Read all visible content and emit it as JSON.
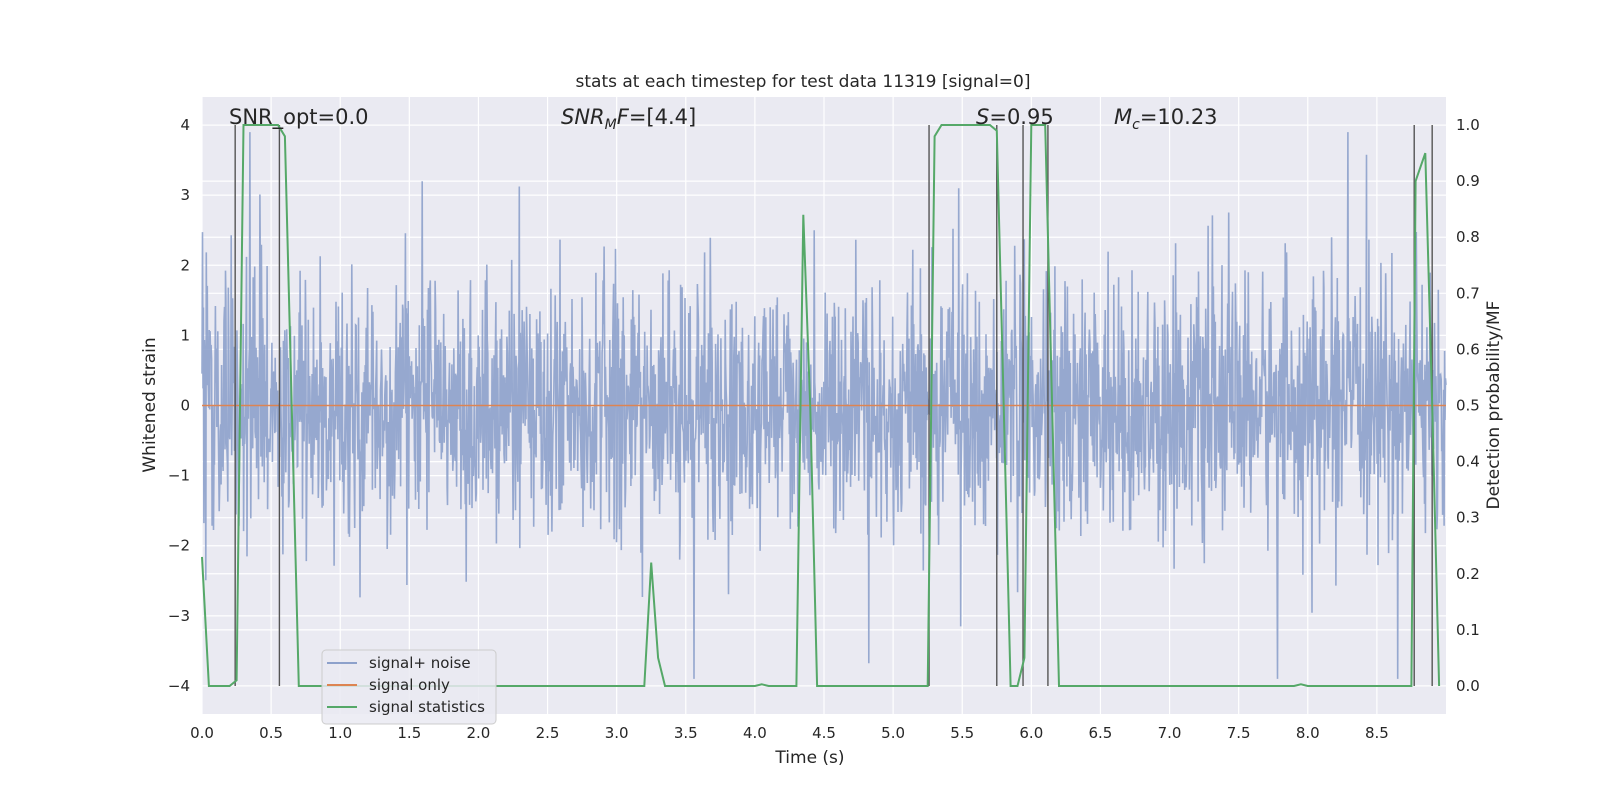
{
  "chart_data": {
    "type": "line",
    "title": "stats at each timestep for test data 11319 [signal=0]",
    "xlabel": "Time (s)",
    "ylabel": "Whitened strain",
    "ylabel_right": "Detection probability/MF",
    "xlim": [
      0.0,
      9.0
    ],
    "ylim": [
      -4.4,
      4.4
    ],
    "ylim_right": [
      -0.05,
      1.05
    ],
    "x_ticks": [
      "0.0",
      "0.5",
      "1.0",
      "1.5",
      "2.0",
      "2.5",
      "3.0",
      "3.5",
      "4.0",
      "4.5",
      "5.0",
      "5.5",
      "6.0",
      "6.5",
      "7.0",
      "7.5",
      "8.0",
      "8.5"
    ],
    "y_ticks": [
      "4",
      "3",
      "2",
      "1",
      "0",
      "−1",
      "−2",
      "−3",
      "−4"
    ],
    "y_ticks_right": [
      "1.0",
      "0.9",
      "0.8",
      "0.7",
      "0.6",
      "0.5",
      "0.4",
      "0.3",
      "0.2",
      "0.1",
      "0.0"
    ],
    "grid": true,
    "legend_position": "lower-left",
    "annotations": [
      {
        "text": "SNR_opt=0.0",
        "x": 0.2
      },
      {
        "text": "SNR_MF=[4.4]",
        "x": 2.6
      },
      {
        "text": "S=0.95",
        "x": 5.6
      },
      {
        "text": "M_c=10.23",
        "x": 6.6
      }
    ],
    "series": [
      {
        "name": "signal+ noise",
        "color": "#8da1cb",
        "description": "whitened strain noise, envelope about ±1.6 with spikes reaching ±3"
      },
      {
        "name": "signal only",
        "color": "#dd8452",
        "values_constant": 0.0
      },
      {
        "name": "signal statistics",
        "color": "#55a868",
        "axis": "right",
        "x": [
          0.0,
          0.05,
          0.2,
          0.25,
          0.3,
          0.55,
          0.6,
          0.7,
          3.2,
          3.25,
          3.3,
          3.35,
          4.0,
          4.05,
          4.1,
          4.3,
          4.35,
          4.4,
          4.45,
          5.25,
          5.3,
          5.35,
          5.4,
          5.7,
          5.75,
          5.8,
          5.85,
          5.9,
          5.95,
          6.0,
          6.05,
          6.1,
          6.15,
          6.2,
          6.25,
          7.9,
          7.95,
          8.0,
          8.05,
          8.75,
          8.78,
          8.85,
          8.9,
          8.95
        ],
        "y": [
          0.23,
          0.0,
          0.0,
          0.01,
          1.0,
          1.0,
          0.98,
          0.0,
          0.0,
          0.22,
          0.05,
          0.0,
          0.0,
          0.003,
          0.0,
          0.0,
          0.84,
          0.5,
          0.0,
          0.0,
          0.98,
          1.0,
          1.0,
          1.0,
          0.99,
          0.5,
          0.0,
          0.0,
          0.05,
          1.0,
          1.0,
          1.0,
          0.5,
          0.0,
          0.0,
          0.0,
          0.003,
          0.0,
          0.0,
          0.0,
          0.9,
          0.95,
          0.5,
          0.0
        ]
      }
    ],
    "vertical_lines_x": [
      0.24,
      0.56,
      5.26,
      5.75,
      5.94,
      6.12,
      8.77,
      8.9
    ],
    "legend": [
      {
        "label": "signal+ noise",
        "color": "#8da1cb"
      },
      {
        "label": "signal only",
        "color": "#dd8452"
      },
      {
        "label": "signal statistics",
        "color": "#55a868"
      }
    ],
    "colors": {
      "plot_background": "#eaeaf2",
      "grid": "#ffffff",
      "vertical_marker": "#555555"
    }
  }
}
